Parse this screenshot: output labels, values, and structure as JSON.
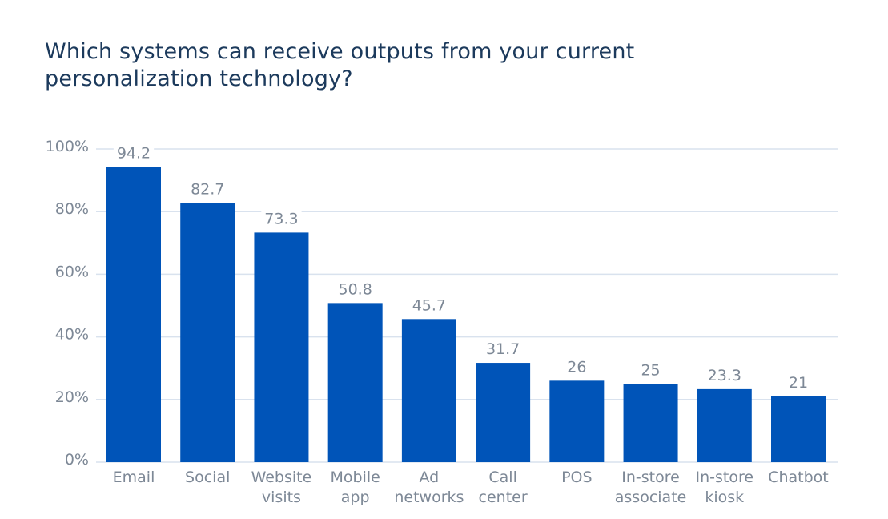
{
  "chart_data": {
    "type": "bar",
    "title": "Which systems can receive outputs from your current personalization technology?",
    "xlabel": "",
    "ylabel": "",
    "ylim": [
      0,
      100
    ],
    "y_ticks": [
      "0%",
      "20%",
      "40%",
      "60%",
      "80%",
      "100%"
    ],
    "grid": true,
    "bar_color": "#0054b8",
    "categories": [
      [
        "Email"
      ],
      [
        "Social"
      ],
      [
        "Website",
        "visits"
      ],
      [
        "Mobile",
        "app"
      ],
      [
        "Ad",
        "networks"
      ],
      [
        "Call",
        "center"
      ],
      [
        "POS"
      ],
      [
        "In-store",
        "associate"
      ],
      [
        "In-store",
        "kiosk"
      ],
      [
        "Chatbot"
      ]
    ],
    "values": [
      94.2,
      82.7,
      73.3,
      50.8,
      45.7,
      31.7,
      26,
      25,
      23.3,
      21
    ],
    "data_labels": [
      "94.2",
      "82.7",
      "73.3",
      "50.8",
      "45.7",
      "31.7",
      "26",
      "25",
      "23.3",
      "21"
    ]
  }
}
